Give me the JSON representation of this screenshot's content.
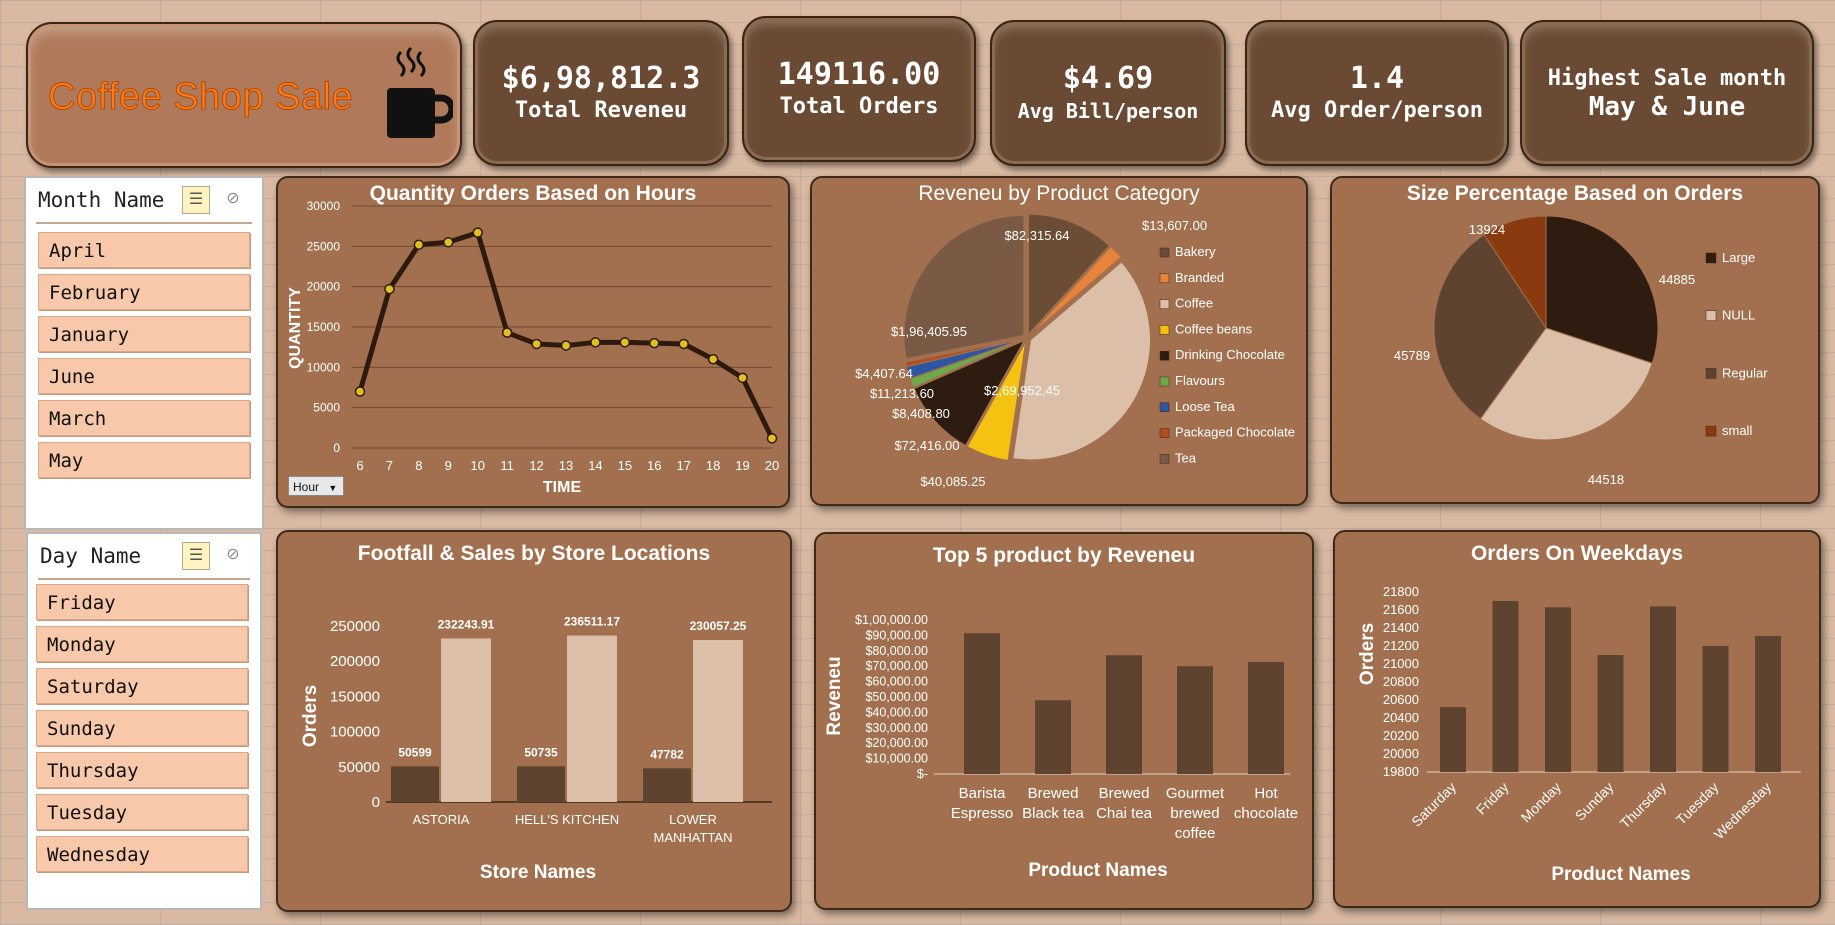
{
  "header": {
    "title": "Coffee Shop Sale",
    "icon": "coffee-cup-icon"
  },
  "kpis": [
    {
      "value": "$6,98,812.3",
      "label": "Total Reveneu"
    },
    {
      "value": "149116.00",
      "label": "Total Orders"
    },
    {
      "value": "$4.69",
      "label": "Avg Bill/person"
    },
    {
      "value": "1.4",
      "label": "Avg Order/person"
    },
    {
      "value": "Highest Sale month",
      "label": "May & June"
    }
  ],
  "slicers": {
    "month": {
      "title": "Month Name",
      "items": [
        "April",
        "February",
        "January",
        "June",
        "March",
        "May"
      ]
    },
    "day": {
      "title": "Day Name",
      "items": [
        "Friday",
        "Monday",
        "Saturday",
        "Sunday",
        "Thursday",
        "Tuesday",
        "Wednesday"
      ]
    }
  },
  "hour_button": "Hour",
  "colors": {
    "panel": "#a2704f",
    "dark_line": "#2e1a0d",
    "marker": "#e0c020",
    "bar_dark": "#5e4330",
    "bar_light": "#dcbfa8",
    "title_orange": "#ff7a1a"
  },
  "chart_data": [
    {
      "type": "line",
      "title": "Quantity Orders Based on Hours",
      "xlabel": "TIME",
      "ylabel": "QUANTITY",
      "x": [
        6,
        7,
        8,
        9,
        10,
        11,
        12,
        13,
        14,
        15,
        16,
        17,
        18,
        19,
        20
      ],
      "values": [
        7000,
        19700,
        25200,
        25500,
        26700,
        14300,
        12900,
        12700,
        13100,
        13100,
        13000,
        12900,
        11000,
        8700,
        1200
      ],
      "ylim": [
        0,
        30000
      ],
      "yticks": [
        0,
        5000,
        10000,
        15000,
        20000,
        25000,
        30000
      ],
      "grid": true
    },
    {
      "type": "pie",
      "title": "Reveneu by Product Category",
      "categories": [
        "Bakery",
        "Branded",
        "Coffee",
        "Coffee beans",
        "Drinking Chocolate",
        "Flavours",
        "Loose Tea",
        "Packaged Chocolate",
        "Tea"
      ],
      "values": [
        82315.64,
        13607.0,
        269952.45,
        40085.25,
        72416.0,
        8408.8,
        11213.6,
        4407.64,
        196405.95
      ],
      "data_labels": [
        "$82,315.64",
        "$13,607.00",
        "$2,69,952.45",
        "$40,085.25",
        "$72,416.00",
        "$8,408.80",
        "$11,213.60",
        "$4,407.64",
        "$1,96,405.95"
      ],
      "colors": [
        "#6b4c35",
        "#e8833a",
        "#dcbfa8",
        "#f5c211",
        "#2e1c10",
        "#6ea84b",
        "#2d55a0",
        "#b04e22",
        "#7a5a44"
      ],
      "legend": "right"
    },
    {
      "type": "pie",
      "title": "Size Percentage Based on Orders",
      "categories": [
        "Large",
        "NULL",
        "Regular",
        "small"
      ],
      "values": [
        44885,
        44518,
        45789,
        13924
      ],
      "colors": [
        "#2e1c10",
        "#dcbfa8",
        "#5e4330",
        "#8a3a0f"
      ],
      "legend": "right"
    },
    {
      "type": "bar",
      "title": "Footfall & Sales by Store Locations",
      "xlabel": "Store Names",
      "ylabel": "Orders",
      "categories": [
        "ASTORIA",
        "HELL'S KITCHEN",
        "LOWER MANHATTAN"
      ],
      "series": [
        {
          "values": [
            50599,
            50735,
            47782
          ]
        },
        {
          "values": [
            232243.91,
            236511.17,
            230057.25
          ]
        }
      ],
      "data_labels": [
        [
          "50599",
          "50735",
          "47782"
        ],
        [
          "232243.91",
          "236511.17",
          "230057.25"
        ]
      ],
      "ylim": [
        0,
        250000
      ],
      "yticks": [
        0,
        50000,
        100000,
        150000,
        200000,
        250000
      ]
    },
    {
      "type": "bar",
      "title": "Top 5 product by Reveneu",
      "xlabel": "Product Names",
      "ylabel": "Reveneu",
      "categories": [
        "Barista Espresso",
        "Brewed Black tea",
        "Brewed Chai tea",
        "Gourmet brewed coffee",
        "Hot chocolate"
      ],
      "values": [
        91400,
        47900,
        77100,
        70000,
        72700
      ],
      "ylim": [
        0,
        100000
      ],
      "ytick_labels": [
        "$-",
        "$10,000.00",
        "$20,000.00",
        "$30,000.00",
        "$40,000.00",
        "$50,000.00",
        "$60,000.00",
        "$70,000.00",
        "$80,000.00",
        "$90,000.00",
        "$1,00,000.00"
      ]
    },
    {
      "type": "bar",
      "title": "Orders On Weekdays",
      "xlabel": "Product Names",
      "ylabel": "Orders",
      "categories": [
        "Saturday",
        "Friday",
        "Monday",
        "Sunday",
        "Thursday",
        "Tuesday",
        "Wednesday"
      ],
      "values": [
        20520,
        21700,
        21630,
        21100,
        21640,
        21200,
        21310
      ],
      "ylim": [
        19800,
        21800
      ],
      "yticks": [
        19800,
        20000,
        20200,
        20400,
        20600,
        20800,
        21000,
        21200,
        21400,
        21600,
        21800
      ]
    }
  ]
}
